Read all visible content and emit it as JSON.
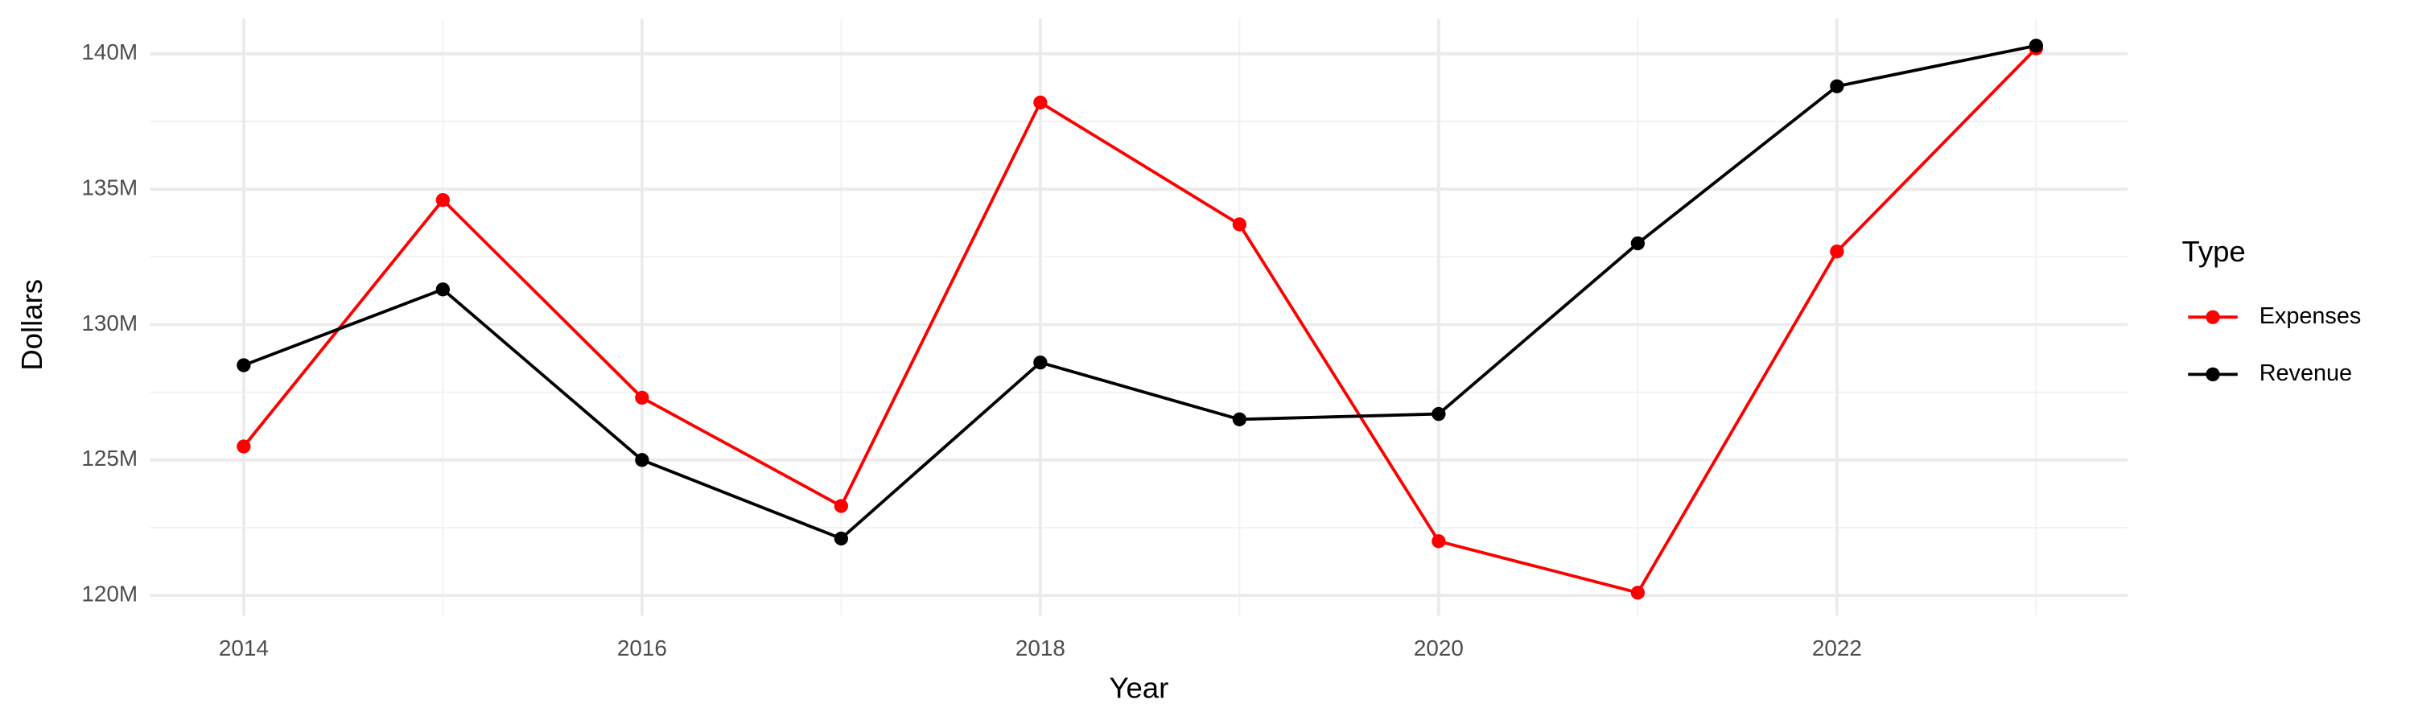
{
  "chart_data": {
    "type": "line",
    "x_label": "Year",
    "y_label": "Dollars",
    "x": [
      2014,
      2015,
      2016,
      2017,
      2018,
      2019,
      2020,
      2021,
      2022,
      2023
    ],
    "series": [
      {
        "name": "Expenses",
        "color": "#ff0000",
        "values": [
          125500000,
          134600000,
          127300000,
          123300000,
          138200000,
          133700000,
          122000000,
          120100000,
          132700000,
          140200000
        ]
      },
      {
        "name": "Revenue",
        "color": "#000000",
        "values": [
          128500000,
          131300000,
          125000000,
          122100000,
          128600000,
          126500000,
          126700000,
          133000000,
          138800000,
          140300000
        ]
      }
    ],
    "xlim": [
      2013.53,
      2023.46
    ],
    "ylim": [
      119250000,
      141300000
    ],
    "xticks": [
      2014,
      2016,
      2018,
      2020,
      2022
    ],
    "yticks": [
      {
        "value": 120000000,
        "label": "120M"
      },
      {
        "value": 125000000,
        "label": "125M"
      },
      {
        "value": 130000000,
        "label": "130M"
      },
      {
        "value": 135000000,
        "label": "135M"
      },
      {
        "value": 140000000,
        "label": "140M"
      }
    ],
    "grid": true,
    "legend_title": "Type",
    "legend_position": "right"
  }
}
